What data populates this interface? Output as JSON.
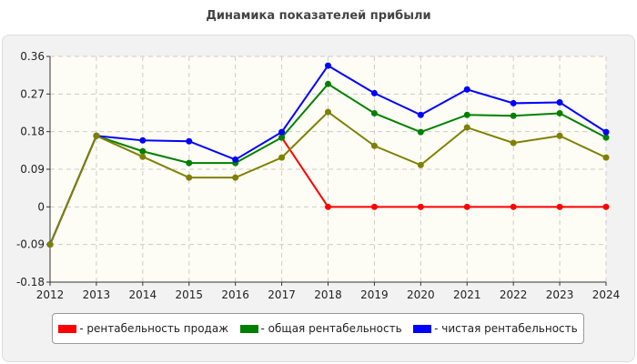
{
  "chart_data": {
    "type": "line",
    "title": "Динамика показателей прибыли",
    "x": [
      "2012",
      "2013",
      "2014",
      "2015",
      "2016",
      "2017",
      "2018",
      "2019",
      "2020",
      "2021",
      "2022",
      "2023",
      "2024"
    ],
    "ylim": [
      -0.18,
      0.36
    ],
    "yticks": [
      "-0.18",
      "-0.09",
      "0",
      "0.09",
      "0.18",
      "0.27",
      "0.36"
    ],
    "grid": true,
    "legend_position": "bottom",
    "series": [
      {
        "name": "- рентабельность продаж",
        "color": "#ff0000",
        "values": [
          null,
          null,
          null,
          null,
          null,
          0.166,
          0,
          0,
          0,
          0,
          0,
          0,
          0
        ]
      },
      {
        "name": "- общая рентабельность",
        "color": "#008000",
        "values": [
          -0.09,
          0.17,
          0.133,
          0.105,
          0.105,
          0.166,
          0.294,
          0.224,
          0.179,
          0.22,
          0.218,
          0.224,
          0.166
        ]
      },
      {
        "name": "- чистая рентабельность",
        "color": "#0000ff",
        "values": [
          -0.09,
          0.17,
          0.159,
          0.157,
          0.113,
          0.179,
          0.338,
          0.272,
          0.22,
          0.281,
          0.248,
          0.25,
          0.179
        ]
      },
      {
        "name": "",
        "color": "#808000",
        "values": [
          -0.09,
          0.17,
          0.12,
          0.07,
          0.07,
          0.118,
          0.227,
          0.146,
          0.1,
          0.19,
          0.153,
          0.17,
          0.118
        ]
      }
    ]
  }
}
